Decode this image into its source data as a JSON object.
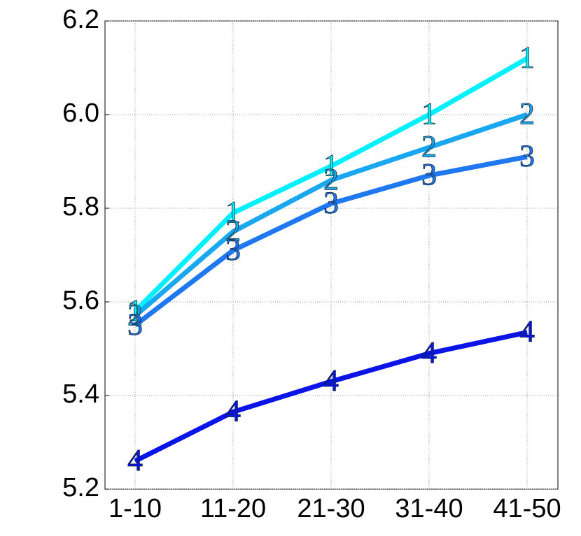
{
  "chart_data": {
    "type": "line",
    "categories": [
      "1-10",
      "11-20",
      "21-30",
      "31-40",
      "41-50"
    ],
    "series": [
      {
        "name": "1",
        "color": "#00f0ff",
        "values": [
          5.58,
          5.79,
          5.89,
          6.0,
          6.12
        ]
      },
      {
        "name": "2",
        "color": "#19a8f0",
        "values": [
          5.57,
          5.75,
          5.86,
          5.93,
          6.0
        ]
      },
      {
        "name": "3",
        "color": "#1f78f0",
        "values": [
          5.55,
          5.71,
          5.81,
          5.87,
          5.91
        ]
      },
      {
        "name": "4",
        "color": "#0a14e6",
        "values": [
          5.26,
          5.365,
          5.43,
          5.49,
          5.535
        ]
      }
    ],
    "ylim": [
      5.2,
      6.2
    ],
    "yticks": [
      5.2,
      5.4,
      5.6,
      5.8,
      {
        "value": 6,
        "label": "6.0"
      },
      6.2
    ],
    "grid": true
  }
}
